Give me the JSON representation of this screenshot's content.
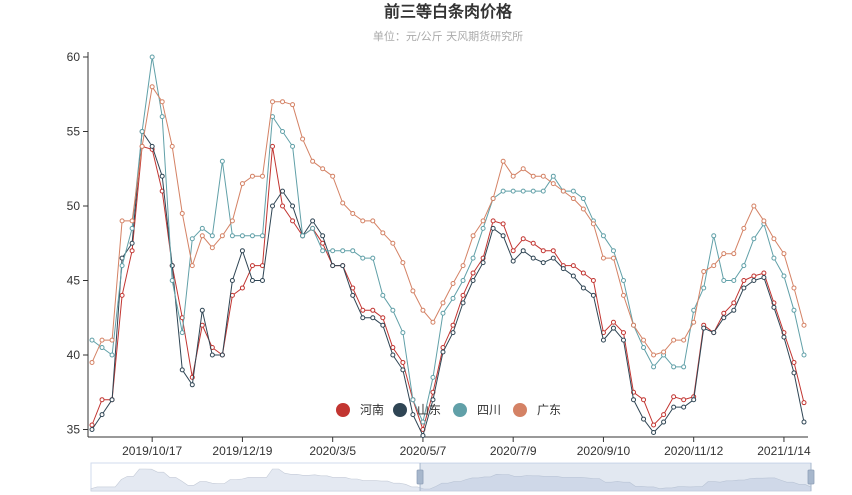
{
  "chart_data": {
    "type": "line",
    "title": "前三等白条肉价格",
    "subtitle": "单位：元/公斤   天风期货研究所",
    "ylim": [
      35,
      60
    ],
    "yticks": [
      35,
      40,
      45,
      50,
      55,
      60
    ],
    "x_tick_labels": [
      "2019/10/17",
      "2019/12/19",
      "2020/3/5",
      "2020/5/7",
      "2020/7/9",
      "2020/9/10",
      "2020/11/12",
      "2021/1/14"
    ],
    "x_tick_index": [
      6,
      15,
      24,
      33,
      42,
      51,
      60,
      69
    ],
    "grid": false,
    "legend_position": "bottom-center",
    "series": [
      {
        "name": "河南",
        "color": "#c23531",
        "values": [
          35.3,
          37.0,
          37.0,
          44.0,
          47.0,
          54.0,
          53.8,
          51.0,
          46.0,
          42.5,
          38.5,
          42.0,
          40.5,
          40.0,
          44.0,
          44.5,
          46.0,
          46.0,
          54.0,
          50.0,
          49.0,
          48.0,
          48.5,
          47.5,
          46.0,
          46.0,
          44.5,
          43.0,
          43.0,
          42.5,
          40.5,
          39.5,
          37.0,
          35.0,
          37.5,
          40.5,
          42.0,
          44.0,
          45.5,
          46.5,
          49.0,
          48.8,
          47.0,
          47.8,
          47.5,
          47.0,
          47.0,
          46.0,
          46.0,
          45.5,
          45.0,
          41.5,
          42.2,
          41.5,
          37.5,
          37.0,
          35.3,
          36.0,
          37.2,
          37.0,
          37.2,
          42.0,
          41.5,
          42.8,
          43.5,
          45.0,
          45.3,
          45.5,
          43.5,
          41.5,
          39.5,
          36.8
        ]
      },
      {
        "name": "山东",
        "color": "#2f4554",
        "values": [
          35.0,
          36.0,
          37.0,
          46.5,
          47.5,
          55.0,
          54.0,
          52.0,
          46.0,
          39.0,
          38.0,
          43.0,
          40.0,
          40.0,
          45.0,
          47.0,
          45.0,
          45.0,
          50.0,
          51.0,
          50.0,
          48.0,
          49.0,
          48.0,
          46.0,
          46.0,
          44.0,
          42.5,
          42.5,
          42.0,
          40.0,
          39.0,
          36.0,
          34.6,
          37.0,
          40.2,
          41.5,
          43.5,
          45.0,
          46.2,
          48.5,
          48.0,
          46.3,
          47.0,
          46.5,
          46.2,
          46.5,
          45.8,
          45.3,
          44.5,
          44.0,
          41.0,
          41.8,
          41.0,
          37.0,
          35.7,
          34.8,
          35.5,
          36.5,
          36.5,
          37.0,
          41.8,
          41.5,
          42.5,
          43.0,
          44.5,
          45.0,
          45.2,
          43.2,
          41.2,
          38.8,
          35.5
        ]
      },
      {
        "name": "四川",
        "color": "#61a0a8",
        "values": [
          41.0,
          40.5,
          40.0,
          46.0,
          48.5,
          55.0,
          60.0,
          56.0,
          45.0,
          41.5,
          47.8,
          48.5,
          48.0,
          53.0,
          48.0,
          48.0,
          48.0,
          48.0,
          56.0,
          55.0,
          54.0,
          48.0,
          48.5,
          47.0,
          47.0,
          47.0,
          47.0,
          46.5,
          46.5,
          44.0,
          43.0,
          41.5,
          37.0,
          35.5,
          38.5,
          42.8,
          43.8,
          45.0,
          46.5,
          48.5,
          50.5,
          51.0,
          51.0,
          51.0,
          51.0,
          51.0,
          52.0,
          51.0,
          51.0,
          50.5,
          49.0,
          48.0,
          47.0,
          45.0,
          42.0,
          40.5,
          39.2,
          40.0,
          39.2,
          39.2,
          43.0,
          44.5,
          48.0,
          45.0,
          45.0,
          46.0,
          47.8,
          48.8,
          46.5,
          45.3,
          43.0,
          40.0
        ]
      },
      {
        "name": "广东",
        "color": "#d48265",
        "values": [
          39.5,
          41.0,
          41.0,
          49.0,
          49.0,
          54.0,
          58.0,
          57.0,
          54.0,
          49.5,
          46.0,
          48.0,
          47.2,
          48.0,
          49.0,
          51.5,
          52.0,
          52.0,
          57.0,
          57.0,
          56.8,
          54.5,
          53.0,
          52.5,
          52.0,
          50.2,
          49.5,
          49.0,
          49.0,
          48.2,
          47.5,
          46.2,
          44.3,
          43.0,
          42.2,
          43.5,
          44.8,
          46.0,
          48.0,
          49.0,
          50.5,
          53.0,
          52.0,
          52.5,
          52.0,
          52.0,
          51.5,
          51.0,
          50.5,
          49.8,
          48.8,
          46.5,
          46.5,
          44.0,
          42.0,
          41.0,
          40.0,
          40.2,
          41.0,
          41.0,
          42.2,
          45.6,
          46.0,
          46.8,
          46.8,
          48.5,
          50.0,
          49.0,
          47.8,
          46.8,
          44.5,
          42.0
        ]
      }
    ]
  }
}
